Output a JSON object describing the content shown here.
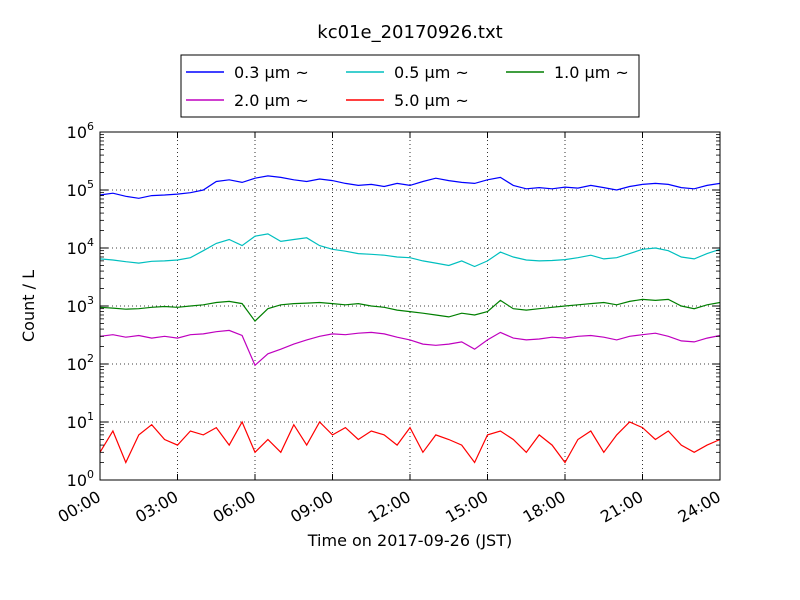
{
  "chart_data": {
    "type": "line",
    "title": "kc01e_20170926.txt",
    "xlabel": "Time on 2017-09-26 (JST)",
    "ylabel": "Count / L",
    "yscale": "log",
    "ylim": [
      1,
      1000000
    ],
    "xlim": [
      "00:00",
      "24:00"
    ],
    "x_ticks": [
      "00:00",
      "03:00",
      "06:00",
      "09:00",
      "12:00",
      "15:00",
      "18:00",
      "21:00",
      "24:00"
    ],
    "y_ticks": [
      {
        "base": "10",
        "exp": "0"
      },
      {
        "base": "10",
        "exp": "1"
      },
      {
        "base": "10",
        "exp": "2"
      },
      {
        "base": "10",
        "exp": "3"
      },
      {
        "base": "10",
        "exp": "4"
      },
      {
        "base": "10",
        "exp": "5"
      },
      {
        "base": "10",
        "exp": "6"
      }
    ],
    "grid": true,
    "legend_placement": "top-center, above plot",
    "x_hours": [
      0,
      0.5,
      1,
      1.5,
      2,
      2.5,
      3,
      3.5,
      4,
      4.5,
      5,
      5.5,
      6,
      6.5,
      7,
      7.5,
      8,
      8.5,
      9,
      9.5,
      10,
      10.5,
      11,
      11.5,
      12,
      12.5,
      13,
      13.5,
      14,
      14.5,
      15,
      15.5,
      16,
      16.5,
      17,
      17.5,
      18,
      18.5,
      19,
      19.5,
      20,
      20.5,
      21,
      21.5,
      22,
      22.5,
      23,
      23.5,
      24
    ],
    "series": [
      {
        "name": "0.3 μm ~",
        "color": "#0000ff",
        "values": [
          82000,
          88000,
          78000,
          72000,
          80000,
          82000,
          85000,
          90000,
          100000,
          140000,
          150000,
          135000,
          160000,
          175000,
          165000,
          150000,
          140000,
          155000,
          145000,
          130000,
          120000,
          125000,
          115000,
          130000,
          120000,
          140000,
          160000,
          145000,
          135000,
          130000,
          150000,
          165000,
          120000,
          105000,
          110000,
          105000,
          112000,
          108000,
          120000,
          110000,
          100000,
          115000,
          125000,
          130000,
          125000,
          110000,
          105000,
          120000,
          130000
        ]
      },
      {
        "name": "0.5 μm ~",
        "color": "#00bfbf",
        "values": [
          6500,
          6200,
          5800,
          5500,
          5900,
          6000,
          6200,
          6800,
          9000,
          12000,
          14000,
          11000,
          16000,
          17500,
          13000,
          14000,
          15000,
          11000,
          9500,
          8800,
          8000,
          7800,
          7500,
          7000,
          6800,
          6000,
          5500,
          5000,
          6000,
          4800,
          6000,
          8500,
          7000,
          6200,
          6000,
          6100,
          6300,
          6800,
          7500,
          6500,
          6800,
          8000,
          9500,
          10000,
          9000,
          7000,
          6500,
          8000,
          9500
        ]
      },
      {
        "name": "1.0 μm ~",
        "color": "#007f00",
        "values": [
          950,
          920,
          880,
          900,
          950,
          980,
          950,
          1000,
          1050,
          1150,
          1200,
          1100,
          550,
          900,
          1050,
          1100,
          1120,
          1150,
          1100,
          1050,
          1100,
          1000,
          950,
          850,
          800,
          750,
          700,
          650,
          750,
          700,
          800,
          1250,
          900,
          850,
          900,
          950,
          1000,
          1050,
          1100,
          1150,
          1050,
          1200,
          1300,
          1250,
          1300,
          1000,
          900,
          1050,
          1150
        ]
      },
      {
        "name": "2.0 μm ~",
        "color": "#bf00bf",
        "values": [
          300,
          320,
          290,
          310,
          280,
          300,
          280,
          320,
          330,
          360,
          380,
          310,
          95,
          150,
          180,
          220,
          260,
          300,
          330,
          320,
          340,
          350,
          330,
          290,
          260,
          220,
          210,
          220,
          240,
          180,
          260,
          350,
          280,
          260,
          270,
          290,
          280,
          300,
          310,
          290,
          260,
          300,
          320,
          340,
          300,
          250,
          240,
          280,
          310
        ]
      },
      {
        "name": "5.0 μm ~",
        "color": "#ff0000",
        "values": [
          3,
          7,
          2,
          6,
          9,
          5,
          4,
          7,
          6,
          8,
          4,
          10,
          3,
          5,
          3,
          9,
          4,
          10,
          6,
          8,
          5,
          7,
          6,
          4,
          8,
          3,
          6,
          5,
          4,
          2,
          6,
          7,
          5,
          3,
          6,
          4,
          2,
          5,
          7,
          3,
          6,
          10,
          8,
          5,
          7,
          4,
          3,
          4,
          5
        ]
      }
    ]
  }
}
